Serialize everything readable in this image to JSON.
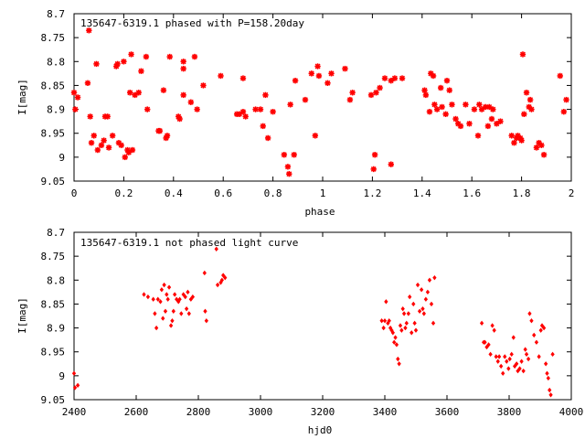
{
  "colors": {
    "points": "#ff0000",
    "axes": "#000000",
    "background": "#ffffff"
  },
  "chart_data": [
    {
      "type": "scatter",
      "title": "135647-6319.1 phased with P=158.20day",
      "xlabel": "phase",
      "ylabel": "I[mag]",
      "xlim": [
        0,
        2
      ],
      "ylim": [
        8.7,
        9.05
      ],
      "y_inverted": true,
      "grid": false,
      "marker": "star",
      "xticks": [
        0,
        0.2,
        0.4,
        0.6,
        0.8,
        1,
        1.2,
        1.4,
        1.6,
        1.8,
        2
      ],
      "xtick_labels": [
        "0",
        "0.2",
        "0.4",
        "0.6",
        "0.8",
        "1",
        "1.2",
        "1.4",
        "1.6",
        "1.8",
        "2"
      ],
      "yticks": [
        8.7,
        8.75,
        8.8,
        8.85,
        8.9,
        8.95,
        9,
        9.05
      ],
      "ytick_labels": [
        "8.7",
        "8.75",
        "8.8",
        "8.85",
        "8.9",
        "8.95",
        "9",
        "9.05"
      ],
      "points": [
        [
          0.0,
          8.865
        ],
        [
          0.005,
          8.9
        ],
        [
          0.015,
          8.875
        ],
        [
          0.055,
          8.845
        ],
        [
          0.06,
          8.735
        ],
        [
          0.065,
          8.915
        ],
        [
          0.07,
          8.97
        ],
        [
          0.08,
          8.955
        ],
        [
          0.09,
          8.805
        ],
        [
          0.095,
          8.985
        ],
        [
          0.11,
          8.975
        ],
        [
          0.12,
          8.965
        ],
        [
          0.125,
          8.915
        ],
        [
          0.135,
          8.915
        ],
        [
          0.14,
          8.98
        ],
        [
          0.155,
          8.955
        ],
        [
          0.17,
          8.81
        ],
        [
          0.175,
          8.805
        ],
        [
          0.18,
          8.97
        ],
        [
          0.19,
          8.975
        ],
        [
          0.2,
          8.8
        ],
        [
          0.205,
          9.0
        ],
        [
          0.215,
          8.985
        ],
        [
          0.22,
          8.99
        ],
        [
          0.225,
          8.865
        ],
        [
          0.23,
          8.785
        ],
        [
          0.235,
          8.985
        ],
        [
          0.245,
          8.87
        ],
        [
          0.26,
          8.865
        ],
        [
          0.27,
          8.82
        ],
        [
          0.29,
          8.79
        ],
        [
          0.295,
          8.9
        ],
        [
          0.34,
          8.945
        ],
        [
          0.345,
          8.945
        ],
        [
          0.36,
          8.86
        ],
        [
          0.37,
          8.96
        ],
        [
          0.375,
          8.955
        ],
        [
          0.385,
          8.79
        ],
        [
          0.42,
          8.915
        ],
        [
          0.425,
          8.92
        ],
        [
          0.44,
          8.815
        ],
        [
          0.44,
          8.87
        ],
        [
          0.44,
          8.8
        ],
        [
          0.47,
          8.885
        ],
        [
          0.485,
          8.79
        ],
        [
          0.495,
          8.9
        ],
        [
          0.52,
          8.85
        ],
        [
          0.59,
          8.83
        ],
        [
          0.655,
          8.91
        ],
        [
          0.665,
          8.91
        ],
        [
          0.68,
          8.905
        ],
        [
          0.68,
          8.835
        ],
        [
          0.69,
          8.915
        ],
        [
          0.73,
          8.9
        ],
        [
          0.75,
          8.9
        ],
        [
          0.76,
          8.935
        ],
        [
          0.77,
          8.87
        ],
        [
          0.78,
          8.96
        ],
        [
          0.8,
          8.905
        ],
        [
          0.845,
          8.995
        ],
        [
          0.86,
          9.02
        ],
        [
          0.865,
          9.035
        ],
        [
          0.87,
          8.89
        ],
        [
          0.885,
          8.995
        ],
        [
          0.89,
          8.84
        ],
        [
          0.93,
          8.88
        ],
        [
          0.955,
          8.825
        ],
        [
          0.97,
          8.955
        ],
        [
          0.98,
          8.81
        ],
        [
          0.985,
          8.83
        ],
        [
          1.02,
          8.845
        ],
        [
          1.035,
          8.825
        ],
        [
          1.09,
          8.815
        ],
        [
          1.11,
          8.88
        ],
        [
          1.12,
          8.865
        ],
        [
          1.195,
          8.87
        ],
        [
          1.205,
          9.025
        ],
        [
          1.21,
          8.995
        ],
        [
          1.215,
          8.865
        ],
        [
          1.23,
          8.855
        ],
        [
          1.25,
          8.835
        ],
        [
          1.275,
          9.015
        ],
        [
          1.275,
          8.84
        ],
        [
          1.29,
          8.835
        ],
        [
          1.32,
          8.835
        ],
        [
          1.41,
          8.86
        ],
        [
          1.415,
          8.87
        ],
        [
          1.43,
          8.905
        ],
        [
          1.435,
          8.825
        ],
        [
          1.445,
          8.83
        ],
        [
          1.45,
          8.89
        ],
        [
          1.46,
          8.9
        ],
        [
          1.475,
          8.855
        ],
        [
          1.48,
          8.895
        ],
        [
          1.495,
          8.91
        ],
        [
          1.5,
          8.84
        ],
        [
          1.51,
          8.86
        ],
        [
          1.52,
          8.89
        ],
        [
          1.535,
          8.92
        ],
        [
          1.545,
          8.93
        ],
        [
          1.555,
          8.935
        ],
        [
          1.575,
          8.89
        ],
        [
          1.59,
          8.93
        ],
        [
          1.61,
          8.9
        ],
        [
          1.625,
          8.955
        ],
        [
          1.63,
          8.89
        ],
        [
          1.64,
          8.9
        ],
        [
          1.655,
          8.895
        ],
        [
          1.665,
          8.935
        ],
        [
          1.67,
          8.895
        ],
        [
          1.68,
          8.92
        ],
        [
          1.685,
          8.9
        ],
        [
          1.7,
          8.93
        ],
        [
          1.715,
          8.925
        ],
        [
          1.76,
          8.955
        ],
        [
          1.77,
          8.97
        ],
        [
          1.78,
          8.96
        ],
        [
          1.785,
          8.955
        ],
        [
          1.795,
          8.96
        ],
        [
          1.8,
          8.965
        ],
        [
          1.805,
          8.785
        ],
        [
          1.81,
          8.91
        ],
        [
          1.82,
          8.865
        ],
        [
          1.83,
          8.895
        ],
        [
          1.835,
          8.88
        ],
        [
          1.84,
          8.9
        ],
        [
          1.86,
          8.98
        ],
        [
          1.87,
          8.97
        ],
        [
          1.88,
          8.975
        ],
        [
          1.89,
          8.995
        ],
        [
          1.955,
          8.83
        ],
        [
          1.97,
          8.905
        ],
        [
          1.98,
          8.88
        ]
      ]
    },
    {
      "type": "scatter",
      "title": "135647-6319.1 not phased light curve",
      "xlabel": "hjd0",
      "ylabel": "I[mag]",
      "xlim": [
        2400,
        4000
      ],
      "ylim": [
        8.7,
        9.05
      ],
      "y_inverted": true,
      "grid": false,
      "marker": "diamond",
      "xticks": [
        2400,
        2600,
        2800,
        3000,
        3200,
        3400,
        3600,
        3800,
        4000
      ],
      "xtick_labels": [
        "2400",
        "2600",
        "2800",
        "3000",
        "3200",
        "3400",
        "3600",
        "3800",
        "4000"
      ],
      "yticks": [
        8.7,
        8.75,
        8.8,
        8.85,
        8.9,
        8.95,
        9,
        9.05
      ],
      "ytick_labels": [
        "8.7",
        "8.75",
        "8.8",
        "8.85",
        "8.9",
        "8.95",
        "9",
        "9.05"
      ],
      "points": [
        [
          2400,
          8.995
        ],
        [
          2403,
          9.025
        ],
        [
          2412,
          9.02
        ],
        [
          2625,
          8.83
        ],
        [
          2638,
          8.835
        ],
        [
          2655,
          8.84
        ],
        [
          2660,
          8.87
        ],
        [
          2665,
          8.9
        ],
        [
          2670,
          8.84
        ],
        [
          2678,
          8.845
        ],
        [
          2682,
          8.82
        ],
        [
          2686,
          8.88
        ],
        [
          2690,
          8.81
        ],
        [
          2694,
          8.865
        ],
        [
          2698,
          8.83
        ],
        [
          2702,
          8.84
        ],
        [
          2706,
          8.815
        ],
        [
          2712,
          8.895
        ],
        [
          2716,
          8.885
        ],
        [
          2720,
          8.865
        ],
        [
          2724,
          8.83
        ],
        [
          2730,
          8.84
        ],
        [
          2736,
          8.845
        ],
        [
          2740,
          8.84
        ],
        [
          2745,
          8.87
        ],
        [
          2752,
          8.83
        ],
        [
          2758,
          8.835
        ],
        [
          2762,
          8.86
        ],
        [
          2766,
          8.825
        ],
        [
          2770,
          8.87
        ],
        [
          2776,
          8.84
        ],
        [
          2782,
          8.835
        ],
        [
          2820,
          8.785
        ],
        [
          2822,
          8.865
        ],
        [
          2826,
          8.885
        ],
        [
          2858,
          8.735
        ],
        [
          2862,
          8.81
        ],
        [
          2872,
          8.805
        ],
        [
          2876,
          8.8
        ],
        [
          2880,
          8.79
        ],
        [
          2886,
          8.795
        ],
        [
          3390,
          8.885
        ],
        [
          3396,
          8.9
        ],
        [
          3400,
          8.885
        ],
        [
          3404,
          8.845
        ],
        [
          3410,
          8.89
        ],
        [
          3414,
          8.885
        ],
        [
          3418,
          8.9
        ],
        [
          3422,
          8.905
        ],
        [
          3426,
          8.91
        ],
        [
          3430,
          8.93
        ],
        [
          3434,
          8.92
        ],
        [
          3438,
          8.935
        ],
        [
          3442,
          8.965
        ],
        [
          3446,
          8.975
        ],
        [
          3450,
          8.895
        ],
        [
          3454,
          8.905
        ],
        [
          3458,
          8.86
        ],
        [
          3462,
          8.87
        ],
        [
          3466,
          8.9
        ],
        [
          3470,
          8.89
        ],
        [
          3476,
          8.87
        ],
        [
          3480,
          8.835
        ],
        [
          3486,
          8.91
        ],
        [
          3492,
          8.85
        ],
        [
          3496,
          8.89
        ],
        [
          3500,
          8.905
        ],
        [
          3506,
          8.81
        ],
        [
          3512,
          8.865
        ],
        [
          3518,
          8.82
        ],
        [
          3522,
          8.86
        ],
        [
          3526,
          8.87
        ],
        [
          3532,
          8.84
        ],
        [
          3538,
          8.825
        ],
        [
          3544,
          8.8
        ],
        [
          3550,
          8.85
        ],
        [
          3556,
          8.89
        ],
        [
          3560,
          8.795
        ],
        [
          3712,
          8.89
        ],
        [
          3718,
          8.93
        ],
        [
          3722,
          8.93
        ],
        [
          3728,
          8.94
        ],
        [
          3734,
          8.935
        ],
        [
          3740,
          8.955
        ],
        [
          3746,
          8.895
        ],
        [
          3752,
          8.905
        ],
        [
          3758,
          8.96
        ],
        [
          3764,
          8.97
        ],
        [
          3768,
          8.96
        ],
        [
          3774,
          8.98
        ],
        [
          3780,
          8.995
        ],
        [
          3786,
          8.96
        ],
        [
          3792,
          8.97
        ],
        [
          3798,
          8.985
        ],
        [
          3802,
          8.965
        ],
        [
          3808,
          8.955
        ],
        [
          3814,
          8.92
        ],
        [
          3818,
          8.98
        ],
        [
          3824,
          8.975
        ],
        [
          3828,
          8.99
        ],
        [
          3834,
          8.985
        ],
        [
          3840,
          8.97
        ],
        [
          3846,
          8.99
        ],
        [
          3852,
          8.945
        ],
        [
          3856,
          8.955
        ],
        [
          3862,
          8.965
        ],
        [
          3866,
          8.87
        ],
        [
          3872,
          8.885
        ],
        [
          3880,
          8.915
        ],
        [
          3888,
          8.93
        ],
        [
          3896,
          8.96
        ],
        [
          3902,
          8.905
        ],
        [
          3906,
          8.895
        ],
        [
          3912,
          8.9
        ],
        [
          3918,
          8.975
        ],
        [
          3922,
          8.995
        ],
        [
          3926,
          9.005
        ],
        [
          3930,
          9.03
        ],
        [
          3934,
          9.04
        ],
        [
          3940,
          8.955
        ]
      ]
    }
  ]
}
